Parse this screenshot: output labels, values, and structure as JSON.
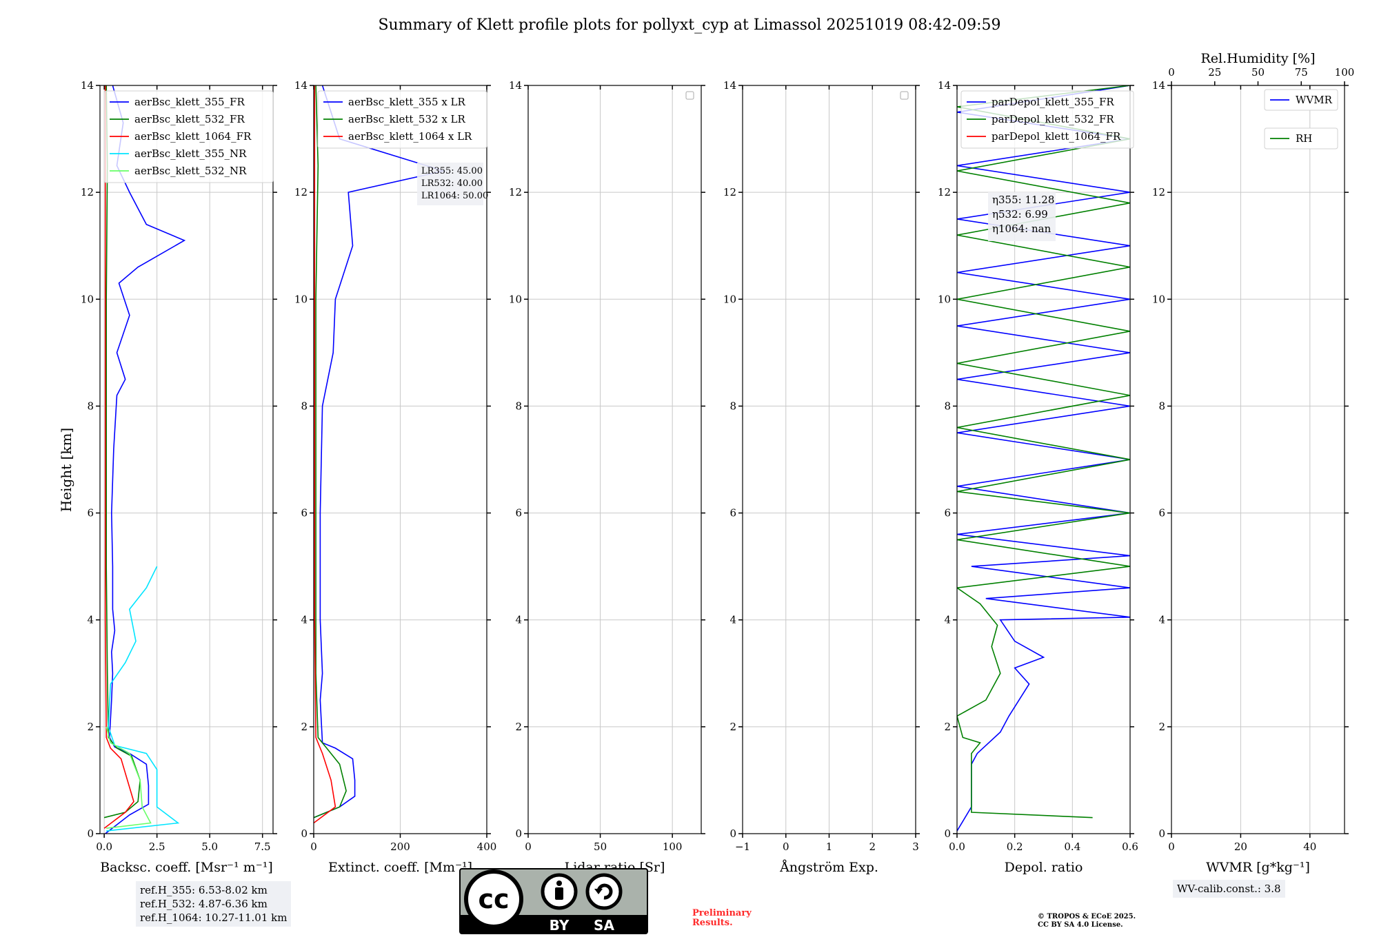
{
  "title": "Summary of Klett profile plots for pollyxt_cyp at Limassol 20251019 08:42-09:59",
  "y_label": "Height [km]",
  "colors": {
    "c355": "#0000ff",
    "c532": "#008000",
    "c1064": "#ff0000",
    "c355nr": "#00e5ff",
    "c532nr": "#66ff66"
  },
  "chart_data": [
    {
      "type": "line",
      "xlabel": "Backsc. coeff. [Msr⁻¹ m⁻¹]",
      "xlim": [
        -0.2,
        8.0
      ],
      "ylim": [
        0,
        14
      ],
      "xticks": [
        0,
        2.5,
        5.0,
        7.5
      ],
      "xtick_labels": [
        "0.0",
        "2.5",
        "5.0",
        "7.5"
      ],
      "yticks": [
        0,
        2,
        4,
        6,
        8,
        10,
        12,
        14
      ],
      "ytick_labels": [
        "0",
        "2",
        "4",
        "6",
        "8",
        "10",
        "12",
        "14"
      ],
      "legend": [
        "aerBsc_klett_355_FR",
        "aerBsc_klett_532_FR",
        "aerBsc_klett_1064_FR",
        "aerBsc_klett_355_NR",
        "aerBsc_klett_532_NR"
      ],
      "series": [
        {
          "name": "aerBsc_klett_355_FR",
          "color_key": "c355",
          "points": [
            [
              0.05,
              0
            ],
            [
              1.2,
              0.35
            ],
            [
              2.1,
              0.55
            ],
            [
              2.1,
              0.9
            ],
            [
              2.0,
              1.3
            ],
            [
              1.2,
              1.5
            ],
            [
              0.5,
              1.62
            ],
            [
              0.25,
              1.8
            ],
            [
              0.35,
              2.5
            ],
            [
              0.4,
              3.0
            ],
            [
              0.35,
              3.4
            ],
            [
              0.5,
              3.8
            ],
            [
              0.4,
              4.2
            ],
            [
              0.4,
              5.0
            ],
            [
              0.35,
              6.0
            ],
            [
              0.45,
              7.2
            ],
            [
              0.6,
              8.2
            ],
            [
              1.0,
              8.5
            ],
            [
              0.6,
              9.0
            ],
            [
              1.2,
              9.7
            ],
            [
              0.7,
              10.3
            ],
            [
              1.6,
              10.6
            ],
            [
              3.8,
              11.1
            ],
            [
              2.0,
              11.4
            ],
            [
              1.2,
              12.0
            ],
            [
              0.6,
              12.5
            ],
            [
              0.9,
              13.3
            ],
            [
              0.4,
              14.0
            ]
          ]
        },
        {
          "name": "aerBsc_klett_532_FR",
          "color_key": "c532",
          "points": [
            [
              0,
              0.3
            ],
            [
              1.0,
              0.4
            ],
            [
              1.6,
              0.6
            ],
            [
              1.7,
              1.0
            ],
            [
              1.3,
              1.45
            ],
            [
              0.6,
              1.6
            ],
            [
              0.2,
              1.8
            ],
            [
              0.15,
              3.0
            ],
            [
              0.1,
              5.0
            ],
            [
              0.1,
              10.0
            ],
            [
              0.15,
              12.5
            ],
            [
              0.1,
              14.0
            ]
          ]
        },
        {
          "name": "aerBsc_klett_1064_FR",
          "color_key": "c1064",
          "points": [
            [
              0,
              0.1
            ],
            [
              1.0,
              0.4
            ],
            [
              1.4,
              0.6
            ],
            [
              0.8,
              1.4
            ],
            [
              0.3,
              1.6
            ],
            [
              0.1,
              1.8
            ],
            [
              0.05,
              4.0
            ],
            [
              0.05,
              14.0
            ]
          ]
        },
        {
          "name": "aerBsc_klett_355_NR",
          "color_key": "c355nr",
          "points": [
            [
              0.1,
              0.05
            ],
            [
              3.5,
              0.2
            ],
            [
              2.5,
              0.5
            ],
            [
              2.5,
              1.2
            ],
            [
              2.0,
              1.5
            ],
            [
              0.5,
              1.65
            ],
            [
              0.2,
              2.0
            ],
            [
              0.3,
              2.8
            ],
            [
              1.0,
              3.2
            ],
            [
              1.5,
              3.6
            ],
            [
              1.2,
              4.2
            ],
            [
              2.0,
              4.6
            ],
            [
              2.5,
              5.0
            ]
          ]
        },
        {
          "name": "aerBsc_klett_532_NR",
          "color_key": "c532nr",
          "points": [
            [
              0.1,
              0.1
            ],
            [
              2.2,
              0.2
            ],
            [
              1.8,
              0.5
            ],
            [
              1.7,
              1.0
            ],
            [
              1.2,
              1.5
            ],
            [
              0.3,
              1.7
            ],
            [
              0.1,
              2.0
            ]
          ]
        }
      ],
      "annotation_lines": []
    },
    {
      "type": "line",
      "xlabel": "Extinct. coeff. [Mm⁻¹]",
      "xlim": [
        0,
        400
      ],
      "ylim": [
        0,
        14
      ],
      "xticks": [
        0,
        200,
        400
      ],
      "xtick_labels": [
        "0",
        "200",
        "400"
      ],
      "yticks": [
        0,
        2,
        4,
        6,
        8,
        10,
        12,
        14
      ],
      "ytick_labels": [
        "0",
        "2",
        "4",
        "6",
        "8",
        "10",
        "12",
        "14"
      ],
      "legend": [
        "aerBsc_klett_355 x LR",
        "aerBsc_klett_532 x LR",
        "aerBsc_klett_1064 x LR"
      ],
      "series": [
        {
          "name": "aerBsc_klett_355 x LR",
          "color_key": "c355",
          "points": [
            [
              0,
              0.3
            ],
            [
              60,
              0.5
            ],
            [
              95,
              0.7
            ],
            [
              95,
              1.0
            ],
            [
              90,
              1.4
            ],
            [
              50,
              1.6
            ],
            [
              20,
              1.7
            ],
            [
              15,
              2.5
            ],
            [
              20,
              3.0
            ],
            [
              15,
              4.0
            ],
            [
              15,
              6.0
            ],
            [
              20,
              8.0
            ],
            [
              45,
              9.0
            ],
            [
              50,
              10.0
            ],
            [
              90,
              11.0
            ],
            [
              80,
              12.0
            ],
            [
              300,
              12.4
            ],
            [
              60,
              13.0
            ],
            [
              20,
              14.0
            ]
          ]
        },
        {
          "name": "aerBsc_klett_532 x LR",
          "color_key": "c532",
          "points": [
            [
              0,
              0.3
            ],
            [
              60,
              0.5
            ],
            [
              75,
              0.8
            ],
            [
              60,
              1.3
            ],
            [
              30,
              1.6
            ],
            [
              10,
              1.8
            ],
            [
              5,
              3.0
            ],
            [
              5,
              10.0
            ],
            [
              10,
              12.5
            ],
            [
              5,
              14.0
            ]
          ]
        },
        {
          "name": "aerBsc_klett_1064 x LR",
          "color_key": "c1064",
          "points": [
            [
              0,
              0.2
            ],
            [
              50,
              0.5
            ],
            [
              40,
              1.0
            ],
            [
              20,
              1.5
            ],
            [
              5,
              1.8
            ],
            [
              2,
              4.0
            ],
            [
              2,
              14.0
            ]
          ]
        }
      ],
      "annotation_lines": [
        "LR355: 45.00",
        "LR532: 40.00",
        "LR1064: 50.00"
      ]
    },
    {
      "type": "line",
      "xlabel": "Lidar ratio [Sr]",
      "xlim": [
        0,
        120
      ],
      "ylim": [
        0,
        14
      ],
      "xticks": [
        0,
        50,
        100
      ],
      "xtick_labels": [
        "0",
        "50",
        "100"
      ],
      "yticks": [
        0,
        2,
        4,
        6,
        8,
        10,
        12,
        14
      ],
      "ytick_labels": [
        "0",
        "2",
        "4",
        "6",
        "8",
        "10",
        "12",
        "14"
      ],
      "legend": [],
      "series": [],
      "annotation_lines": []
    },
    {
      "type": "line",
      "xlabel": "Ångström Exp.",
      "xlim": [
        -1,
        3
      ],
      "ylim": [
        0,
        14
      ],
      "xticks": [
        -1,
        0,
        1,
        2,
        3
      ],
      "xtick_labels": [
        "−1",
        "0",
        "1",
        "2",
        "3"
      ],
      "yticks": [
        0,
        2,
        4,
        6,
        8,
        10,
        12,
        14
      ],
      "ytick_labels": [
        "0",
        "2",
        "4",
        "6",
        "8",
        "10",
        "12",
        "14"
      ],
      "legend": [],
      "series": [],
      "annotation_lines": []
    },
    {
      "type": "line",
      "xlabel": "Depol. ratio",
      "xlim": [
        0,
        0.6
      ],
      "ylim": [
        0,
        14
      ],
      "xticks": [
        0,
        0.2,
        0.4,
        0.6
      ],
      "xtick_labels": [
        "0.0",
        "0.2",
        "0.4",
        "0.6"
      ],
      "yticks": [
        0,
        2,
        4,
        6,
        8,
        10,
        12,
        14
      ],
      "ytick_labels": [
        "0",
        "2",
        "4",
        "6",
        "8",
        "10",
        "12",
        "14"
      ],
      "legend": [
        "parDepol_klett_355_FR",
        "parDepol_klett_532_FR",
        "parDepol_klett_1064_FR"
      ],
      "series": [
        {
          "name": "parDepol_klett_355_FR",
          "color_key": "c355",
          "points": [
            [
              0,
              0.05
            ],
            [
              0.05,
              0.5
            ],
            [
              0.05,
              1.3
            ],
            [
              0.07,
              1.5
            ],
            [
              0.15,
              1.9
            ],
            [
              0.18,
              2.2
            ],
            [
              0.25,
              2.8
            ],
            [
              0.2,
              3.1
            ],
            [
              0.3,
              3.3
            ],
            [
              0.2,
              3.6
            ],
            [
              0.15,
              4.0
            ],
            [
              0.6,
              4.05
            ],
            [
              0.1,
              4.4
            ],
            [
              0.6,
              4.6
            ],
            [
              0.05,
              5.0
            ],
            [
              0.6,
              5.2
            ],
            [
              0.0,
              5.6
            ],
            [
              0.6,
              6.0
            ],
            [
              0.0,
              6.5
            ],
            [
              0.6,
              7.0
            ],
            [
              0.0,
              7.5
            ],
            [
              0.6,
              8.0
            ],
            [
              0.0,
              8.5
            ],
            [
              0.6,
              9.0
            ],
            [
              0.0,
              9.5
            ],
            [
              0.6,
              10.0
            ],
            [
              0.0,
              10.5
            ],
            [
              0.6,
              11.0
            ],
            [
              0.0,
              11.5
            ],
            [
              0.6,
              12.0
            ],
            [
              0.0,
              12.5
            ],
            [
              0.6,
              13.0
            ],
            [
              0.0,
              13.5
            ],
            [
              0.6,
              14.0
            ]
          ]
        },
        {
          "name": "parDepol_klett_532_FR",
          "color_key": "c532",
          "points": [
            [
              0.47,
              0.3
            ],
            [
              0.05,
              0.4
            ],
            [
              0.05,
              1.5
            ],
            [
              0.08,
              1.7
            ],
            [
              0.02,
              1.8
            ],
            [
              0.0,
              2.2
            ],
            [
              0.1,
              2.5
            ],
            [
              0.15,
              3.0
            ],
            [
              0.12,
              3.5
            ],
            [
              0.14,
              3.9
            ],
            [
              0.08,
              4.3
            ],
            [
              0.0,
              4.6
            ],
            [
              0.6,
              5.0
            ],
            [
              0.0,
              5.5
            ],
            [
              0.6,
              6.0
            ],
            [
              0.0,
              6.4
            ],
            [
              0.6,
              7.0
            ],
            [
              0.0,
              7.6
            ],
            [
              0.6,
              8.2
            ],
            [
              0.0,
              8.8
            ],
            [
              0.6,
              9.4
            ],
            [
              0.0,
              10.0
            ],
            [
              0.6,
              10.6
            ],
            [
              0.0,
              11.2
            ],
            [
              0.6,
              11.8
            ],
            [
              0.0,
              12.4
            ],
            [
              0.6,
              13.0
            ],
            [
              0.0,
              13.6
            ],
            [
              0.6,
              14.0
            ]
          ]
        }
      ],
      "annotation_lines": [
        "η355: 11.28",
        "η532: 6.99",
        "η1064: nan"
      ]
    },
    {
      "type": "line",
      "xlabel": "WVMR [g*kg⁻¹]",
      "xlim": [
        0,
        50
      ],
      "ylim": [
        0,
        14
      ],
      "xticks": [
        0,
        20,
        40
      ],
      "xtick_labels": [
        "0",
        "20",
        "40"
      ],
      "yticks": [
        0,
        2,
        4,
        6,
        8,
        10,
        12,
        14
      ],
      "ytick_labels": [
        "0",
        "2",
        "4",
        "6",
        "8",
        "10",
        "12",
        "14"
      ],
      "top_xlabel": "Rel.Humidity [%]",
      "top_xlim": [
        0,
        100
      ],
      "top_xticks": [
        0,
        25,
        50,
        75,
        100
      ],
      "top_xtick_labels": [
        "0",
        "25",
        "50",
        "75",
        "100"
      ],
      "legend": [
        "WVMR",
        "RH"
      ],
      "series": [],
      "annotation_lines": []
    }
  ],
  "ref_heights": [
    "ref.H_355: 6.53-8.02 km",
    "ref.H_532: 4.87-6.36 km",
    "ref.H_1064: 10.27-11.01 km"
  ],
  "wv_calib": "WV-calib.const.: 3.8",
  "preliminary": [
    "Preliminary",
    "Results."
  ],
  "copyright": [
    "© TROPOS & ECoE 2025.",
    "CC BY SA 4.0 License."
  ],
  "cc_badge": {
    "cc": "cc",
    "by": "BY",
    "sa": "SA"
  }
}
